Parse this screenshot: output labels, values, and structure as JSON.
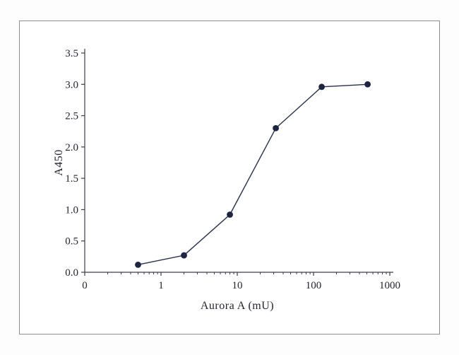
{
  "chart_data": {
    "type": "line",
    "title": "",
    "xlabel": "Aurora A (mU)",
    "ylabel": "A450",
    "x": [
      0.5,
      2,
      8,
      32,
      128,
      512
    ],
    "y": [
      0.12,
      0.27,
      0.92,
      2.3,
      2.96,
      3.0
    ],
    "xscale": "log",
    "x_axis": {
      "min": 0.1,
      "max": 1000,
      "tick_values": [
        0.1,
        1,
        10,
        100,
        1000
      ],
      "tick_labels": [
        "0",
        "1",
        "10",
        "100",
        "1000"
      ],
      "minor_ticks": true
    },
    "y_axis": {
      "min": 0,
      "max": 3.5,
      "step": 0.5,
      "tick_labels": [
        "0.0",
        "0.5",
        "1.0",
        "1.5",
        "2.0",
        "2.5",
        "3.0",
        "3.5"
      ]
    },
    "grid": false,
    "legend": null,
    "marker": "filled-circle",
    "colors": {
      "line": "#28304f",
      "marker": "#1d2440",
      "axis": "#3c3c46",
      "text": "#23232e",
      "frame_border": "#8f8f8f"
    }
  }
}
